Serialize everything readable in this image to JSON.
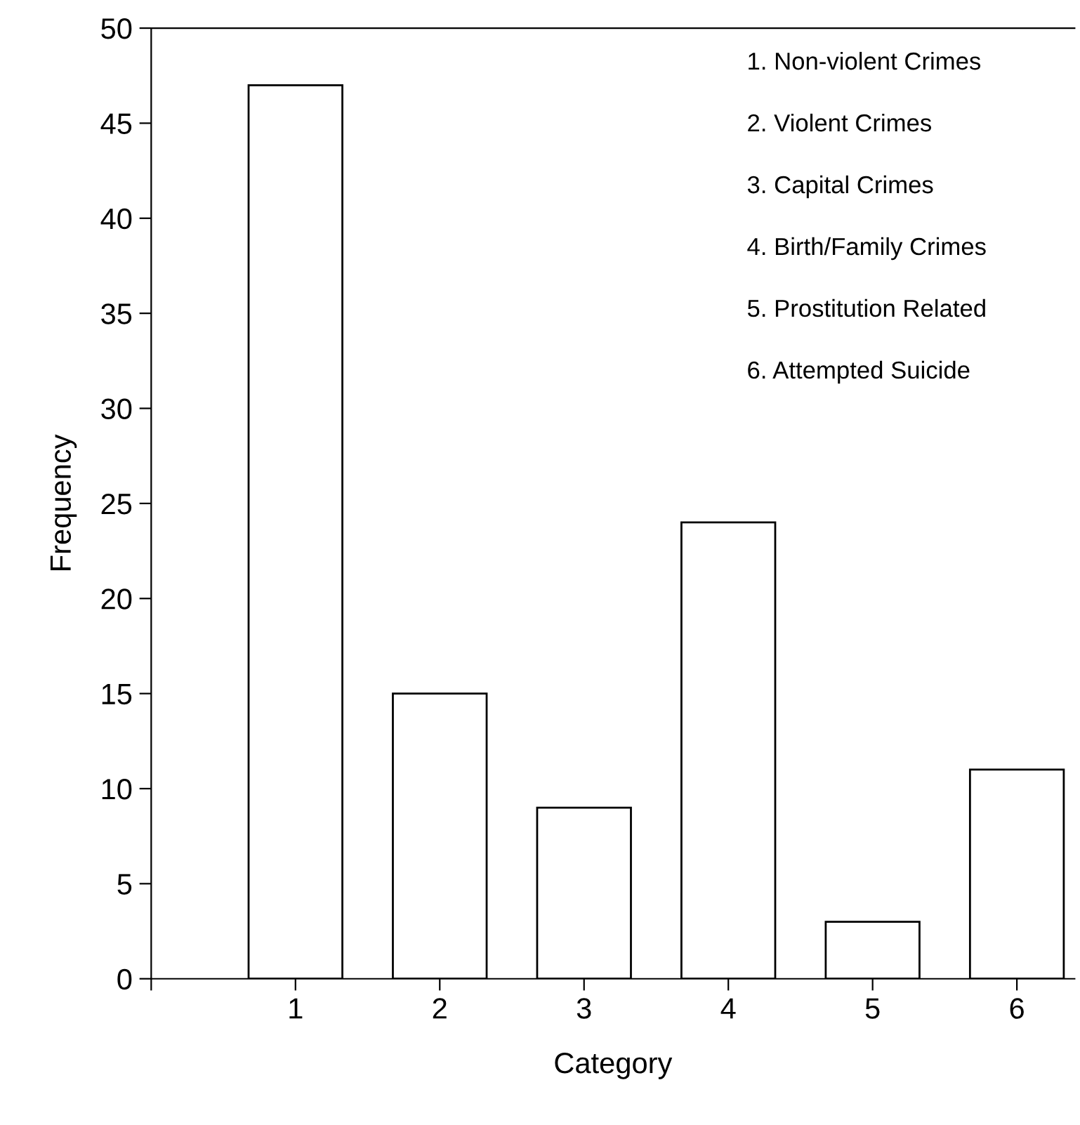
{
  "chart_data": {
    "type": "bar",
    "xlabel": "Category",
    "ylabel": "Frequency",
    "x": [
      1,
      2,
      3,
      4,
      5,
      6
    ],
    "values": [
      47,
      15,
      9,
      24,
      3,
      11
    ],
    "color": "#ffffff",
    "xlim": [
      0,
      6.4
    ],
    "xticks": [
      {
        "value": 0,
        "label": null
      },
      1,
      2,
      3,
      4,
      5,
      6
    ],
    "ylim": [
      0,
      50
    ],
    "yticks": [
      0,
      5,
      10,
      15,
      20,
      25,
      30,
      35,
      40,
      45,
      50
    ],
    "grid": false,
    "legend": false,
    "annotations": [
      "1. Non-violent Crimes",
      "2. Violent Crimes",
      "3. Capital Crimes",
      "4. Birth/Family Crimes",
      "5. Prostitution Related",
      "6. Attempted Suicide"
    ]
  }
}
